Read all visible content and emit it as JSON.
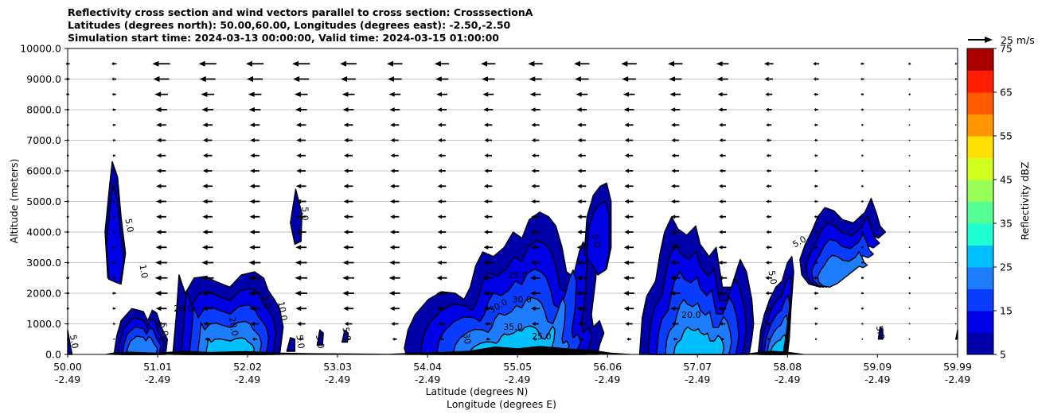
{
  "chart_data": {
    "type": "heatmap",
    "subtype": "filled-contour cross section with wind vectors",
    "title_lines": [
      "Reflectivity cross section and wind vectors parallel to cross section: CrosssectionA",
      "Latitudes (degrees north): 50.00,60.00, Longitudes (degrees east): -2.50,-2.50",
      "Simulation start time: 2024-03-13 00:00:00, Valid time: 2024-03-15 01:00:00"
    ],
    "ylabel": "Altitude (meters)",
    "xlabel_lines": [
      "Latitude (degrees N)",
      "Longitude (degrees E)"
    ],
    "xlim": [
      50.0,
      59.99
    ],
    "ylim": [
      0,
      10000
    ],
    "x_ticks": [
      {
        "value": 50.0,
        "lat": "50.00",
        "lon": "-2.49"
      },
      {
        "value": 51.01,
        "lat": "51.01",
        "lon": "-2.49"
      },
      {
        "value": 52.02,
        "lat": "52.02",
        "lon": "-2.49"
      },
      {
        "value": 53.03,
        "lat": "53.03",
        "lon": "-2.49"
      },
      {
        "value": 54.04,
        "lat": "54.04",
        "lon": "-2.49"
      },
      {
        "value": 55.05,
        "lat": "55.05",
        "lon": "-2.49"
      },
      {
        "value": 56.06,
        "lat": "56.06",
        "lon": "-2.49"
      },
      {
        "value": 57.07,
        "lat": "57.07",
        "lon": "-2.49"
      },
      {
        "value": 58.08,
        "lat": "58.08",
        "lon": "-2.49"
      },
      {
        "value": 59.09,
        "lat": "59.09",
        "lon": "-2.49"
      },
      {
        "value": 59.99,
        "lat": "59.99",
        "lon": "-2.49"
      }
    ],
    "y_ticks": [
      {
        "value": 0,
        "label": "0.0"
      },
      {
        "value": 1000,
        "label": "1000.0"
      },
      {
        "value": 2000,
        "label": "2000.0"
      },
      {
        "value": 3000,
        "label": "3000.0"
      },
      {
        "value": 4000,
        "label": "4000.0"
      },
      {
        "value": 5000,
        "label": "5000.0"
      },
      {
        "value": 6000,
        "label": "6000.0"
      },
      {
        "value": 7000,
        "label": "7000.0"
      },
      {
        "value": 8000,
        "label": "8000.0"
      },
      {
        "value": 9000,
        "label": "9000.0"
      },
      {
        "value": 10000,
        "label": "10000.0"
      }
    ],
    "horizontal_grid": true,
    "colorbar": {
      "label": "Reflectivity dBZ",
      "levels": [
        5,
        10,
        15,
        20,
        25,
        30,
        35,
        40,
        45,
        50,
        55,
        60,
        65,
        70,
        75
      ],
      "tick_labels": [
        "5",
        "15",
        "25",
        "35",
        "45",
        "55",
        "65",
        "75"
      ],
      "colors": [
        "#0000aa",
        "#0000e6",
        "#0a3cff",
        "#1e7dff",
        "#00bfff",
        "#1effd2",
        "#56ff96",
        "#98ff56",
        "#d2ff1e",
        "#ffe000",
        "#ff9600",
        "#ff5a00",
        "#ff1e00",
        "#aa0000"
      ]
    },
    "wind_key": {
      "label": "25 m/s",
      "speed": 25
    },
    "wind_level_altitudes": [
      500,
      1000,
      1500,
      2000,
      2500,
      3000,
      3500,
      4000,
      4500,
      5000,
      5500,
      6000,
      6500,
      7000,
      7500,
      8000,
      8500,
      9000,
      9500
    ],
    "wind_column_latitudes": [
      50.0,
      50.52,
      51.05,
      51.57,
      52.1,
      52.62,
      53.15,
      53.67,
      54.2,
      54.72,
      55.25,
      55.77,
      56.3,
      56.82,
      57.35,
      57.87,
      58.4,
      58.92,
      59.45,
      59.97
    ],
    "wind_speed_by_altitude": [
      6,
      10,
      13,
      15,
      15,
      14,
      13,
      12,
      12,
      12,
      12,
      11,
      11,
      11,
      12,
      14,
      16,
      19,
      21
    ],
    "wind_speed_scale_by_column": [
      0.2,
      0.25,
      0.85,
      0.85,
      0.85,
      0.85,
      0.8,
      0.75,
      0.7,
      0.7,
      0.7,
      0.75,
      0.75,
      0.7,
      0.6,
      0.45,
      0.3,
      0.18,
      0.12,
      0.1
    ],
    "echo_cells": [
      {
        "name": "cell-50-0",
        "peak": 5,
        "points": [
          [
            50.0,
            0
          ],
          [
            50.0,
            800
          ],
          [
            50.03,
            300
          ],
          [
            50.05,
            0
          ]
        ]
      },
      {
        "name": "cell-50-5-tall",
        "peak": 10,
        "points": [
          [
            50.45,
            2500
          ],
          [
            50.42,
            4000
          ],
          [
            50.47,
            5500
          ],
          [
            50.5,
            6300
          ],
          [
            50.56,
            5800
          ],
          [
            50.6,
            4500
          ],
          [
            50.65,
            3300
          ],
          [
            50.6,
            2300
          ],
          [
            50.52,
            2400
          ]
        ]
      },
      {
        "name": "cell-50-6-low",
        "peak": 20,
        "points": [
          [
            50.52,
            0
          ],
          [
            50.55,
            600
          ],
          [
            50.6,
            1100
          ],
          [
            50.72,
            1500
          ],
          [
            50.85,
            1400
          ],
          [
            50.9,
            1100
          ],
          [
            50.95,
            1450
          ],
          [
            51.0,
            1350
          ],
          [
            51.05,
            900
          ],
          [
            51.12,
            500
          ],
          [
            51.1,
            0
          ]
        ]
      },
      {
        "name": "cell-51-3",
        "peak": 25,
        "points": [
          [
            51.18,
            0
          ],
          [
            51.22,
            1300
          ],
          [
            51.25,
            2600
          ],
          [
            51.32,
            2000
          ],
          [
            51.42,
            2500
          ],
          [
            51.55,
            2550
          ],
          [
            51.65,
            2400
          ],
          [
            51.82,
            2200
          ],
          [
            51.95,
            2600
          ],
          [
            52.1,
            2700
          ],
          [
            52.2,
            2500
          ],
          [
            52.25,
            2100
          ],
          [
            52.32,
            1800
          ],
          [
            52.38,
            1500
          ],
          [
            52.42,
            900
          ],
          [
            52.38,
            0
          ]
        ]
      },
      {
        "name": "cell-52-6-hi",
        "peak": 5,
        "points": [
          [
            52.55,
            3600
          ],
          [
            52.5,
            4300
          ],
          [
            52.56,
            5400
          ],
          [
            52.63,
            4600
          ],
          [
            52.62,
            3700
          ]
        ]
      },
      {
        "name": "cell-52-6-lo",
        "peak": 5,
        "points": [
          [
            52.46,
            100
          ],
          [
            52.5,
            550
          ],
          [
            52.55,
            500
          ],
          [
            52.55,
            100
          ]
        ]
      },
      {
        "name": "cell-52-9",
        "peak": 5,
        "points": [
          [
            52.8,
            300
          ],
          [
            52.83,
            800
          ],
          [
            52.87,
            700
          ],
          [
            52.86,
            300
          ]
        ]
      },
      {
        "name": "cell-53-1",
        "peak": 5,
        "points": [
          [
            53.08,
            400
          ],
          [
            53.11,
            800
          ],
          [
            53.15,
            700
          ],
          [
            53.14,
            400
          ]
        ]
      },
      {
        "name": "cell-54-2-main",
        "peak": 35,
        "points": [
          [
            53.78,
            200
          ],
          [
            53.82,
            800
          ],
          [
            53.9,
            1300
          ],
          [
            54.05,
            1800
          ],
          [
            54.2,
            2050
          ],
          [
            54.35,
            2000
          ],
          [
            54.45,
            1800
          ],
          [
            54.52,
            2200
          ],
          [
            54.58,
            2900
          ],
          [
            54.66,
            3350
          ],
          [
            54.78,
            3200
          ],
          [
            54.9,
            3500
          ],
          [
            55.0,
            4000
          ],
          [
            55.1,
            3800
          ],
          [
            55.18,
            4400
          ],
          [
            55.3,
            4650
          ],
          [
            55.4,
            4500
          ],
          [
            55.48,
            4200
          ],
          [
            55.55,
            3500
          ],
          [
            55.6,
            2700
          ],
          [
            55.7,
            2500
          ],
          [
            55.78,
            3300
          ],
          [
            55.85,
            4200
          ],
          [
            55.9,
            4600
          ],
          [
            55.95,
            4000
          ],
          [
            55.93,
            2500
          ],
          [
            55.88,
            1300
          ],
          [
            55.9,
            900
          ],
          [
            55.97,
            1100
          ],
          [
            56.02,
            700
          ],
          [
            55.97,
            300
          ],
          [
            55.95,
            0
          ],
          [
            53.9,
            0
          ],
          [
            53.8,
            0
          ]
        ]
      },
      {
        "name": "cell-56-1",
        "peak": 10,
        "points": [
          [
            55.8,
            3300
          ],
          [
            55.83,
            4500
          ],
          [
            55.9,
            5200
          ],
          [
            55.98,
            5500
          ],
          [
            56.05,
            5600
          ],
          [
            56.1,
            5000
          ],
          [
            56.1,
            3500
          ],
          [
            56.05,
            2800
          ],
          [
            55.95,
            2600
          ],
          [
            55.88,
            3000
          ]
        ]
      },
      {
        "name": "cell-57-main",
        "peak": 25,
        "points": [
          [
            56.42,
            0
          ],
          [
            56.45,
            1200
          ],
          [
            56.5,
            1900
          ],
          [
            56.6,
            2400
          ],
          [
            56.65,
            3300
          ],
          [
            56.7,
            4000
          ],
          [
            56.78,
            4500
          ],
          [
            56.85,
            4100
          ],
          [
            56.95,
            3900
          ],
          [
            57.05,
            4200
          ],
          [
            57.1,
            3600
          ],
          [
            57.2,
            3200
          ],
          [
            57.28,
            3500
          ],
          [
            57.35,
            2200
          ],
          [
            57.45,
            2200
          ],
          [
            57.55,
            3100
          ],
          [
            57.62,
            2700
          ],
          [
            57.68,
            1800
          ],
          [
            57.7,
            1000
          ],
          [
            57.68,
            500
          ],
          [
            57.65,
            0
          ]
        ]
      },
      {
        "name": "cell-58-east",
        "peak": 25,
        "points": [
          [
            57.75,
            0
          ],
          [
            57.78,
            800
          ],
          [
            57.82,
            1300
          ],
          [
            57.88,
            1800
          ],
          [
            57.95,
            2200
          ],
          [
            58.02,
            2400
          ],
          [
            58.08,
            3000
          ],
          [
            58.13,
            3200
          ],
          [
            58.15,
            2700
          ],
          [
            58.12,
            1500
          ],
          [
            58.1,
            500
          ],
          [
            58.08,
            0
          ]
        ]
      },
      {
        "name": "cell-58-9-anvil",
        "peak": 20,
        "points": [
          [
            58.22,
            3100
          ],
          [
            58.28,
            3600
          ],
          [
            58.35,
            4000
          ],
          [
            58.42,
            4500
          ],
          [
            58.5,
            4800
          ],
          [
            58.6,
            4700
          ],
          [
            58.7,
            4400
          ],
          [
            58.82,
            4300
          ],
          [
            58.95,
            4650
          ],
          [
            59.02,
            5100
          ],
          [
            59.08,
            4600
          ],
          [
            59.12,
            4200
          ],
          [
            59.18,
            4000
          ],
          [
            59.1,
            3800
          ],
          [
            59.02,
            3900
          ],
          [
            58.9,
            3500
          ],
          [
            58.75,
            3000
          ],
          [
            58.6,
            2500
          ],
          [
            58.45,
            2200
          ],
          [
            58.32,
            2300
          ],
          [
            58.24,
            2600
          ]
        ]
      },
      {
        "name": "cell-59-1",
        "peak": 5,
        "points": [
          [
            59.1,
            500
          ],
          [
            59.12,
            900
          ],
          [
            59.15,
            800
          ],
          [
            59.15,
            500
          ]
        ]
      },
      {
        "name": "cell-60-0",
        "peak": 5,
        "points": [
          [
            59.97,
            500
          ],
          [
            59.99,
            800
          ],
          [
            59.99,
            500
          ]
        ]
      }
    ],
    "contour_labels": [
      {
        "lat": 50.04,
        "alt": 400,
        "text": "5.0",
        "rotate": 80
      },
      {
        "lat": 50.66,
        "alt": 4200,
        "text": "5.0",
        "rotate": 80
      },
      {
        "lat": 50.82,
        "alt": 2700,
        "text": "1.0",
        "rotate": 80
      },
      {
        "lat": 51.05,
        "alt": 800,
        "text": "5.0",
        "rotate": 80
      },
      {
        "lat": 51.3,
        "alt": 1400,
        "text": "20.0",
        "rotate": 0
      },
      {
        "lat": 51.83,
        "alt": 900,
        "text": "20.0",
        "rotate": 80
      },
      {
        "lat": 52.2,
        "alt": 1700,
        "text": "5.0",
        "rotate": 80
      },
      {
        "lat": 52.38,
        "alt": 1400,
        "text": "10.0",
        "rotate": 80
      },
      {
        "lat": 52.58,
        "alt": 400,
        "text": "5.0",
        "rotate": 80
      },
      {
        "lat": 52.63,
        "alt": 4600,
        "text": "5.0",
        "rotate": 90
      },
      {
        "lat": 52.8,
        "alt": 400,
        "text": "5.0",
        "rotate": 80
      },
      {
        "lat": 53.1,
        "alt": 650,
        "text": "5.0",
        "rotate": 80
      },
      {
        "lat": 54.45,
        "alt": 500,
        "text": "30",
        "rotate": 80
      },
      {
        "lat": 54.85,
        "alt": 1500,
        "text": "30.0",
        "rotate": -30
      },
      {
        "lat": 55.0,
        "alt": 800,
        "text": "35.0",
        "rotate": 0
      },
      {
        "lat": 55.05,
        "alt": 2500,
        "text": "25.0",
        "rotate": 0
      },
      {
        "lat": 55.1,
        "alt": 1700,
        "text": "30.0",
        "rotate": 0
      },
      {
        "lat": 55.32,
        "alt": 500,
        "text": "25.0",
        "rotate": 0
      },
      {
        "lat": 55.9,
        "alt": 3700,
        "text": "5.0",
        "rotate": 80
      },
      {
        "lat": 57.0,
        "alt": 1200,
        "text": "20.0",
        "rotate": 0
      },
      {
        "lat": 57.88,
        "alt": 2500,
        "text": "5.0",
        "rotate": 80
      },
      {
        "lat": 58.23,
        "alt": 3600,
        "text": "5.0",
        "rotate": -30
      },
      {
        "lat": 59.09,
        "alt": 700,
        "text": "5.0",
        "rotate": 80
      }
    ]
  }
}
